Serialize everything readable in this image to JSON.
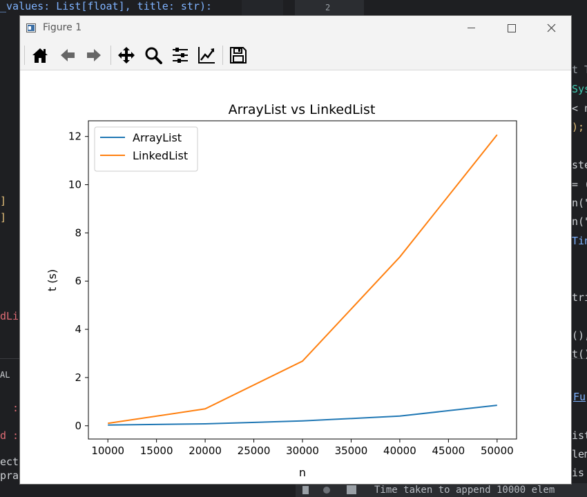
{
  "editor": {
    "top_line": "_values: List[float], title: str):",
    "bottom_status": "Time taken to append 10000 elem",
    "frag_right_1": "t T",
    "frag_right_2": "Sys",
    "frag_right_3": "< n",
    "frag_right_4": ");",
    "frag_right_5": "ste",
    "frag_right_6": "= (",
    "frag_right_7": "n(\"",
    "frag_right_8": "n(\"",
    "frag_right_9": "Tin",
    "frag_right_10": "tri",
    "frag_right_11": "(),",
    "frag_right_12": "t()",
    "frag_right_13": "Fu",
    "frag_right_14": "ist",
    "frag_right_15": "lem",
    "frag_right_16": "is",
    "frag_left_1": "]",
    "frag_left_2": "]",
    "frag_left_3": "dLi",
    "frag_left_4": "AL",
    "frag_left_5": ":",
    "frag_left_6": "d :",
    "frag_left_7": "ect",
    "frag_left_8": "pra",
    "tab_number": "2"
  },
  "window": {
    "title": "Figure 1",
    "icons": [
      "home-icon",
      "back-arrow-icon",
      "forward-arrow-icon",
      "pan-icon",
      "zoom-icon",
      "subplots-config-icon",
      "edit-axis-icon",
      "save-icon"
    ]
  },
  "chart_data": {
    "type": "line",
    "title": "ArrayList vs LinkedList",
    "xlabel": "n",
    "ylabel": "t (s)",
    "x": [
      10000,
      20000,
      30000,
      40000,
      50000
    ],
    "series": [
      {
        "name": "ArrayList",
        "color": "#1f77b4",
        "values": [
          0.03,
          0.08,
          0.2,
          0.4,
          0.85
        ]
      },
      {
        "name": "LinkedList",
        "color": "#ff7f0e",
        "values": [
          0.1,
          0.7,
          2.68,
          7.0,
          12.07
        ]
      }
    ],
    "xlim": [
      8000,
      52000
    ],
    "ylim": [
      -0.55,
      12.65
    ],
    "xticks": [
      "10000",
      "15000",
      "20000",
      "25000",
      "30000",
      "35000",
      "40000",
      "45000",
      "50000"
    ],
    "yticks": [
      "0",
      "2",
      "4",
      "6",
      "8",
      "10",
      "12"
    ],
    "legend_position": "upper-left",
    "grid": false
  }
}
